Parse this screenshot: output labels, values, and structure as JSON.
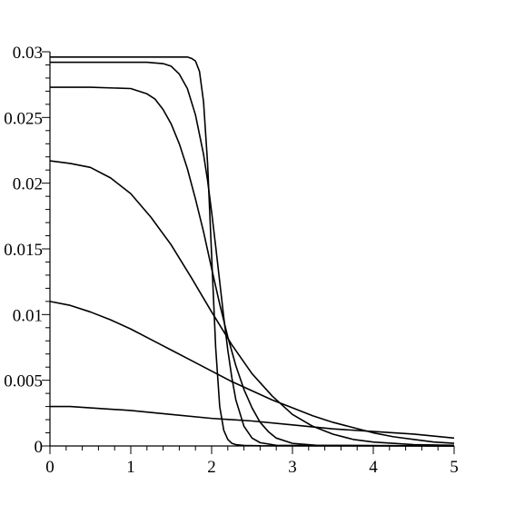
{
  "chart_data": {
    "type": "line",
    "title": "",
    "xlabel": "",
    "ylabel": "",
    "xlim": [
      0,
      5
    ],
    "ylim": [
      0,
      0.03
    ],
    "grid": false,
    "legend": "none",
    "line_color": "#000000",
    "x_ticks": [
      {
        "value": 0,
        "label": "0"
      },
      {
        "value": 1,
        "label": "1"
      },
      {
        "value": 2,
        "label": "2"
      },
      {
        "value": 3,
        "label": "3"
      },
      {
        "value": 4,
        "label": "4"
      },
      {
        "value": 5,
        "label": "5"
      }
    ],
    "y_ticks": [
      {
        "value": 0,
        "label": "0"
      },
      {
        "value": 0.005,
        "label": "0.005"
      },
      {
        "value": 0.01,
        "label": "0.01"
      },
      {
        "value": 0.015,
        "label": "0.015"
      },
      {
        "value": 0.02,
        "label": "0.02"
      },
      {
        "value": 0.025,
        "label": "0.025"
      },
      {
        "value": 0.03,
        "label": "0.03"
      }
    ],
    "series": [
      {
        "x": [
          0,
          0.5,
          1,
          1.2,
          1.4,
          1.5,
          1.6,
          1.7,
          1.75,
          1.8,
          1.85,
          1.9,
          1.95,
          2.0,
          2.05,
          2.1,
          2.15,
          2.2,
          2.25,
          2.3,
          2.4,
          2.6,
          5
        ],
        "y": [
          0.0296,
          0.0296,
          0.0296,
          0.0296,
          0.0296,
          0.0296,
          0.0296,
          0.0296,
          0.0295,
          0.0293,
          0.0285,
          0.0262,
          0.0215,
          0.0145,
          0.0075,
          0.003,
          0.0012,
          0.0005,
          0.0002,
          0.0001,
          4e-05,
          1e-05,
          0
        ]
      },
      {
        "x": [
          0,
          0.5,
          1,
          1.2,
          1.4,
          1.5,
          1.6,
          1.7,
          1.8,
          1.9,
          1.95,
          2.0,
          2.05,
          2.1,
          2.15,
          2.2,
          2.25,
          2.3,
          2.4,
          2.5,
          2.6,
          2.8,
          5
        ],
        "y": [
          0.0292,
          0.0292,
          0.0292,
          0.0292,
          0.0291,
          0.0289,
          0.0283,
          0.0272,
          0.0252,
          0.0222,
          0.0202,
          0.0178,
          0.0152,
          0.0125,
          0.0098,
          0.0073,
          0.0052,
          0.0035,
          0.0015,
          0.0006,
          0.00025,
          5e-05,
          0
        ]
      },
      {
        "x": [
          0,
          0.5,
          1,
          1.2,
          1.3,
          1.4,
          1.5,
          1.6,
          1.7,
          1.8,
          1.9,
          2.0,
          2.1,
          2.2,
          2.3,
          2.4,
          2.5,
          2.6,
          2.7,
          2.8,
          3.0,
          3.3,
          5
        ],
        "y": [
          0.0273,
          0.0273,
          0.0272,
          0.0268,
          0.0264,
          0.0256,
          0.0245,
          0.023,
          0.0211,
          0.0188,
          0.0163,
          0.0135,
          0.0108,
          0.0083,
          0.0061,
          0.0043,
          0.0029,
          0.0018,
          0.0011,
          0.0006,
          0.0002,
          5e-05,
          0
        ]
      },
      {
        "x": [
          0,
          0.25,
          0.5,
          0.75,
          1.0,
          1.25,
          1.5,
          1.75,
          2.0,
          2.25,
          2.5,
          2.75,
          3.0,
          3.25,
          3.5,
          3.75,
          4.0,
          4.5,
          5
        ],
        "y": [
          0.0217,
          0.0215,
          0.0212,
          0.0204,
          0.0192,
          0.0174,
          0.0153,
          0.0128,
          0.0102,
          0.0077,
          0.0055,
          0.0038,
          0.0024,
          0.0015,
          0.0009,
          0.0005,
          0.0003,
          0.0001,
          5e-05
        ]
      },
      {
        "x": [
          0,
          0.25,
          0.5,
          0.75,
          1.0,
          1.25,
          1.5,
          1.75,
          2.0,
          2.25,
          2.5,
          2.75,
          3.0,
          3.25,
          3.5,
          3.75,
          4.0,
          4.25,
          4.5,
          4.75,
          5
        ],
        "y": [
          0.011,
          0.0107,
          0.0102,
          0.0096,
          0.0089,
          0.0081,
          0.0073,
          0.0065,
          0.0057,
          0.0049,
          0.0042,
          0.0035,
          0.0029,
          0.0023,
          0.0018,
          0.0014,
          0.001,
          0.0007,
          0.0005,
          0.0003,
          0.0002
        ]
      },
      {
        "x": [
          0,
          0.25,
          0.5,
          1.0,
          1.5,
          2.0,
          2.5,
          3.0,
          3.5,
          4.0,
          4.5,
          5
        ],
        "y": [
          0.003,
          0.003,
          0.0029,
          0.0027,
          0.0024,
          0.0021,
          0.0019,
          0.0016,
          0.0013,
          0.0011,
          0.0009,
          0.0006
        ]
      }
    ]
  }
}
